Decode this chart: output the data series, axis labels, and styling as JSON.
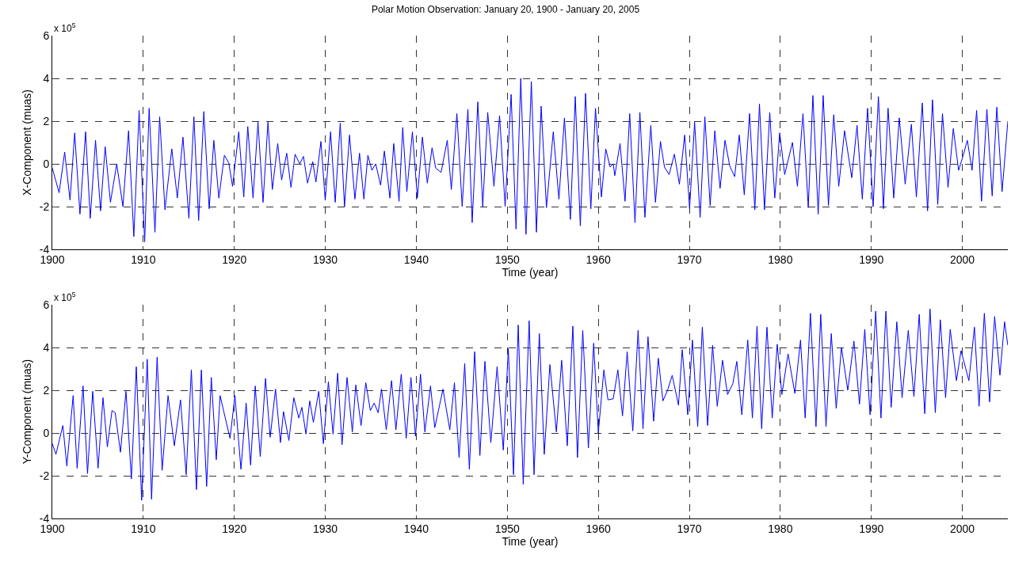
{
  "chart_data": [
    {
      "type": "line",
      "title": "Polar Motion Observation: January 20, 1900 - January 20, 2005",
      "xlabel": "Time (year)",
      "ylabel": "X-Component (muas)",
      "annotations": [
        "x 10$^{5}$"
      ],
      "xlim": [
        1900,
        2005
      ],
      "xticks": [
        1900,
        1910,
        1920,
        1930,
        1940,
        1950,
        1960,
        1970,
        1980,
        1990,
        2000
      ],
      "ylim": [
        -4,
        6
      ],
      "yticks": [
        -4,
        -2,
        0,
        2,
        4,
        6
      ],
      "grid": true,
      "marker": "none",
      "line_style": "solid",
      "x": [
        1900,
        1900.75,
        1901.36,
        1901.95,
        1902.46,
        1903.04,
        1903.66,
        1904.17,
        1904.75,
        1905.3,
        1905.81,
        1906.39,
        1907.08,
        1907.76,
        1908.38,
        1908.96,
        1909.54,
        1910.15,
        1910.64,
        1911.28,
        1911.8,
        1912.38,
        1913.13,
        1913.74,
        1914.36,
        1915.01,
        1915.56,
        1916.08,
        1916.65,
        1917.24,
        1917.75,
        1918.3,
        1918.91,
        1919.39,
        1919.81,
        1920.49,
        1921.04,
        1921.48,
        1922.06,
        1922.6,
        1923.16,
        1923.7,
        1924.18,
        1924.77,
        1925.2,
        1925.76,
        1926.23,
        1926.68,
        1927.19,
        1927.6,
        1928.05,
        1928.62,
        1928.97,
        1929.52,
        1929.99,
        1930.58,
        1931.09,
        1931.64,
        1932.11,
        1932.66,
        1933.25,
        1933.76,
        1934.24,
        1934.68,
        1935.12,
        1935.54,
        1936.08,
        1936.49,
        1937.1,
        1937.52,
        1938.1,
        1938.51,
        1938.96,
        1939.57,
        1940.12,
        1940.67,
        1941.21,
        1941.73,
        1942.13,
        1942.72,
        1943.4,
        1943.85,
        1944.46,
        1945.04,
        1945.67,
        1946.14,
        1946.76,
        1947.3,
        1947.85,
        1948.53,
        1949.15,
        1949.76,
        1950.42,
        1950.96,
        1951.48,
        1952.05,
        1952.64,
        1953.2,
        1953.72,
        1954.3,
        1955.05,
        1955.67,
        1956.28,
        1956.93,
        1957.47,
        1958.02,
        1958.6,
        1959.18,
        1959.69,
        1960.34,
        1960.82,
        1961.3,
        1961.64,
        1961.81,
        1962.39,
        1962.94,
        1963.45,
        1964.03,
        1964.57,
        1965.12,
        1965.77,
        1966.28,
        1966.83,
        1967.27,
        1967.78,
        1968.36,
        1968.91,
        1969.49,
        1970.03,
        1970.58,
        1971.19,
        1971.71,
        1972.29,
        1972.8,
        1973.38,
        1973.92,
        1974.44,
        1974.98,
        1975.49,
        1976.04,
        1976.62,
        1977.2,
        1977.71,
        1978.26,
        1978.84,
        1979.39,
        1979.93,
        1980.48,
        1981.33,
        1981.88,
        1982.49,
        1983.07,
        1983.58,
        1984.16,
        1984.71,
        1985.29,
        1985.87,
        1986.42,
        1987.06,
        1987.85,
        1988.43,
        1989.01,
        1989.59,
        1990.2,
        1990.78,
        1991.33,
        1991.84,
        1992.46,
        1993.07,
        1993.72,
        1994.4,
        1994.95,
        1995.6,
        1996.18,
        1996.72,
        1997.3,
        1997.82,
        1998.43,
        1999.01,
        1999.59,
        2000.03,
        2000.55,
        2001.07,
        2001.57,
        2002.11,
        2002.7,
        2003.28,
        2003.79,
        2004.37,
        2005
      ],
      "series": [
        {
          "color": "#0000ff",
          "values": [
            -0.2,
            -1.35,
            0.55,
            -1.7,
            1.45,
            -2.35,
            1.5,
            -2.55,
            1.1,
            -2.2,
            0.8,
            -1.8,
            0,
            -2.0,
            1.55,
            -3.4,
            2.5,
            -3.65,
            2.6,
            -3.2,
            2.2,
            -2.15,
            0.7,
            -1.6,
            1.25,
            -2.55,
            2.2,
            -2.65,
            2.45,
            -2.1,
            1.1,
            -1.6,
            0.4,
            0.05,
            -1.05,
            1.5,
            -1.55,
            1.75,
            -1.6,
            1.95,
            -1.8,
            1.95,
            -1.2,
            0.95,
            -0.75,
            0.5,
            -1.1,
            0.45,
            0,
            0.35,
            -0.9,
            0.1,
            -0.85,
            1.05,
            -1.7,
            1.5,
            -1.8,
            1.9,
            -2.0,
            1.35,
            -1.65,
            0.5,
            -1.65,
            0.4,
            -0.3,
            0,
            -1.0,
            0.6,
            -1.6,
            0.95,
            -1.75,
            1.7,
            -1.3,
            1.5,
            -1.6,
            1.25,
            -0.9,
            0.75,
            -0.2,
            -0.4,
            1.1,
            -1.2,
            2.35,
            -2.0,
            2.55,
            -2.75,
            2.9,
            -2.0,
            2.4,
            -1.05,
            2.25,
            -2.0,
            3.25,
            -3.05,
            4.0,
            -3.3,
            3.85,
            -3.2,
            2.7,
            -2.05,
            1.5,
            -1.65,
            2.15,
            -2.6,
            3.15,
            -2.9,
            3.3,
            -2.1,
            2.6,
            -1.55,
            0.7,
            -0.15,
            0,
            -0.55,
            0.95,
            -1.75,
            2.35,
            -2.75,
            2.4,
            -2.5,
            1.8,
            -1.8,
            1.05,
            -0.15,
            -0.5,
            0.45,
            -0.95,
            1.35,
            -2.1,
            1.95,
            -2.5,
            2.2,
            -1.95,
            1.55,
            -1.15,
            1.1,
            -0.1,
            -0.6,
            1.35,
            -1.45,
            2.35,
            -2.15,
            2.8,
            -2.15,
            2.4,
            -1.6,
            1.45,
            -0.5,
            1.0,
            -1.05,
            2.35,
            -2.05,
            3.2,
            -2.35,
            3.2,
            -1.95,
            2.3,
            -1.05,
            1.55,
            -0.65,
            1.8,
            -1.65,
            2.6,
            -2.0,
            3.15,
            -2.1,
            2.6,
            -1.6,
            2.15,
            -0.95,
            1.85,
            -1.55,
            2.85,
            -2.2,
            3.0,
            -1.9,
            2.35,
            -1.1,
            1.65,
            -0.3,
            0.3,
            1.1,
            -0.3,
            2.5,
            -1.75,
            2.55,
            -1.5,
            2.65,
            -1.3,
            2.0
          ]
        }
      ]
    },
    {
      "type": "line",
      "xlabel": "Time (year)",
      "ylabel": "Y-Component (muas)",
      "annotations": [
        "x 10$^{5}$"
      ],
      "xlim": [
        1900,
        2005
      ],
      "xticks": [
        1900,
        1910,
        1920,
        1930,
        1940,
        1950,
        1960,
        1970,
        1980,
        1990,
        2000
      ],
      "ylim": [
        -4,
        6
      ],
      "yticks": [
        -4,
        -2,
        0,
        2,
        4,
        6
      ],
      "grid": true,
      "marker": "none",
      "line_style": "solid",
      "x": [
        1900,
        1900.4,
        1901.16,
        1901.6,
        1902.29,
        1902.73,
        1903.38,
        1903.87,
        1904.44,
        1905.03,
        1905.57,
        1906.05,
        1906.56,
        1906.91,
        1907.49,
        1908.1,
        1908.69,
        1909.23,
        1909.82,
        1910.43,
        1910.91,
        1911.52,
        1912.07,
        1912.72,
        1913.41,
        1914.09,
        1914.71,
        1915.28,
        1915.84,
        1916.38,
        1916.96,
        1917.47,
        1918.02,
        1918.44,
        1918.98,
        1919.53,
        1920.07,
        1920.73,
        1921.3,
        1921.79,
        1922.3,
        1922.85,
        1923.43,
        1923.94,
        1924.53,
        1925.07,
        1925.41,
        1926,
        1926.54,
        1927.09,
        1927.43,
        1927.87,
        1928.29,
        1928.69,
        1929.28,
        1929.79,
        1930.34,
        1930.85,
        1931.36,
        1931.84,
        1932.39,
        1932.97,
        1933.35,
        1933.93,
        1934.45,
        1934.95,
        1935.37,
        1935.81,
        1936.18,
        1936.7,
        1937.28,
        1937.76,
        1938.34,
        1938.89,
        1939.41,
        1939.91,
        1940.46,
        1940.94,
        1941.56,
        1942.03,
        1942.93,
        1943.68,
        1944.19,
        1944.7,
        1945.32,
        1945.83,
        1946.41,
        1946.99,
        1947.54,
        1948.19,
        1948.88,
        1949.56,
        1950.11,
        1950.68,
        1951.2,
        1951.75,
        1952.4,
        1952.94,
        1953.52,
        1954.06,
        1954.68,
        1955.39,
        1955.97,
        1956.59,
        1957.2,
        1957.71,
        1958.29,
        1958.91,
        1959.49,
        1960,
        1960.61,
        1961.06,
        1961.64,
        1962.15,
        1962.66,
        1963.17,
        1963.79,
        1964.37,
        1964.91,
        1965.46,
        1966.08,
        1966.59,
        1967.1,
        1967.61,
        1968.12,
        1968.81,
        1969.22,
        1969.83,
        1970.34,
        1970.92,
        1971.43,
        1972.01,
        1972.56,
        1973.07,
        1973.65,
        1974.2,
        1974.78,
        1975.22,
        1975.77,
        1976.42,
        1976.93,
        1977.44,
        1977.95,
        1978.53,
        1979.11,
        1979.66,
        1980.17,
        1980.85,
        1981.6,
        1982.22,
        1982.73,
        1983.31,
        1983.92,
        1984.44,
        1985.02,
        1985.6,
        1986.14,
        1986.72,
        1987.41,
        1988.09,
        1988.7,
        1989.28,
        1989.86,
        1990.48,
        1991.06,
        1991.6,
        1992.18,
        1992.8,
        1993.38,
        1994.06,
        1994.68,
        1995.26,
        1995.87,
        1996.45,
        1997.03,
        1997.58,
        1998.16,
        1998.67,
        1999.35,
        1999.86,
        2000.72,
        2001.33,
        2001.84,
        2002.42,
        2003,
        2003.55,
        2004.13,
        2004.64,
        2005
      ],
      "series": [
        {
          "color": "#0000ff",
          "values": [
            -0.5,
            -1.0,
            0.35,
            -1.55,
            1.75,
            -1.65,
            2.2,
            -1.9,
            1.95,
            -1.65,
            1.65,
            -0.65,
            1.05,
            0.95,
            -0.9,
            1.95,
            -2.15,
            3.1,
            -3.15,
            3.45,
            -3.1,
            3.55,
            -1.75,
            1.75,
            -0.6,
            1.55,
            -1.95,
            2.95,
            -2.65,
            2.95,
            -2.5,
            2.6,
            -1.25,
            1.75,
            0.75,
            -0.25,
            1.75,
            -1.7,
            1.4,
            -1.5,
            2.2,
            -1.1,
            2.55,
            -0.2,
            2.05,
            -0.45,
            1.0,
            -0.35,
            1.65,
            0.7,
            1.2,
            -0.05,
            1.5,
            0.5,
            1.95,
            -0.5,
            2.4,
            -0.05,
            2.8,
            -0.55,
            2.6,
            0.05,
            2.25,
            0.35,
            2.35,
            1.05,
            1.4,
            0.95,
            2.05,
            0.15,
            2.45,
            0.15,
            2.75,
            -0.25,
            2.6,
            -0.15,
            2.75,
            0.05,
            2.2,
            0.25,
            2.05,
            0.15,
            2.35,
            -1.15,
            3.25,
            -1.7,
            3.8,
            -1.05,
            3.35,
            -0.45,
            3.1,
            -0.8,
            3.95,
            -1.95,
            5.05,
            -2.4,
            5.25,
            -1.95,
            4.65,
            -1.0,
            3.2,
            0.05,
            3.4,
            -0.6,
            5.0,
            -1.15,
            4.8,
            -0.7,
            4.2,
            0,
            2.95,
            1.55,
            1.6,
            2.95,
            0.8,
            3.8,
            0.1,
            4.8,
            0.2,
            4.5,
            0.55,
            3.5,
            1.5,
            2.0,
            2.7,
            1.3,
            3.9,
            0.85,
            4.35,
            0.3,
            4.95,
            0.35,
            4.1,
            1.25,
            3.4,
            1.8,
            2.3,
            3.35,
            0.85,
            4.35,
            0.7,
            5.0,
            0.2,
            4.95,
            0.7,
            4.15,
            1.8,
            3.7,
            1.85,
            4.35,
            0.7,
            5.6,
            0.3,
            5.55,
            0.3,
            4.65,
            1.15,
            4.0,
            2.0,
            4.3,
            1.35,
            4.85,
            0.85,
            5.7,
            0.7,
            5.7,
            1.2,
            5.2,
            1.65,
            4.8,
            1.7,
            5.55,
            0.9,
            5.8,
            0.95,
            5.3,
            1.65,
            4.85,
            2.45,
            3.85,
            2.45,
            4.95,
            1.25,
            5.6,
            1.45,
            5.45,
            2.7,
            5.2,
            4.1
          ]
        }
      ]
    }
  ]
}
